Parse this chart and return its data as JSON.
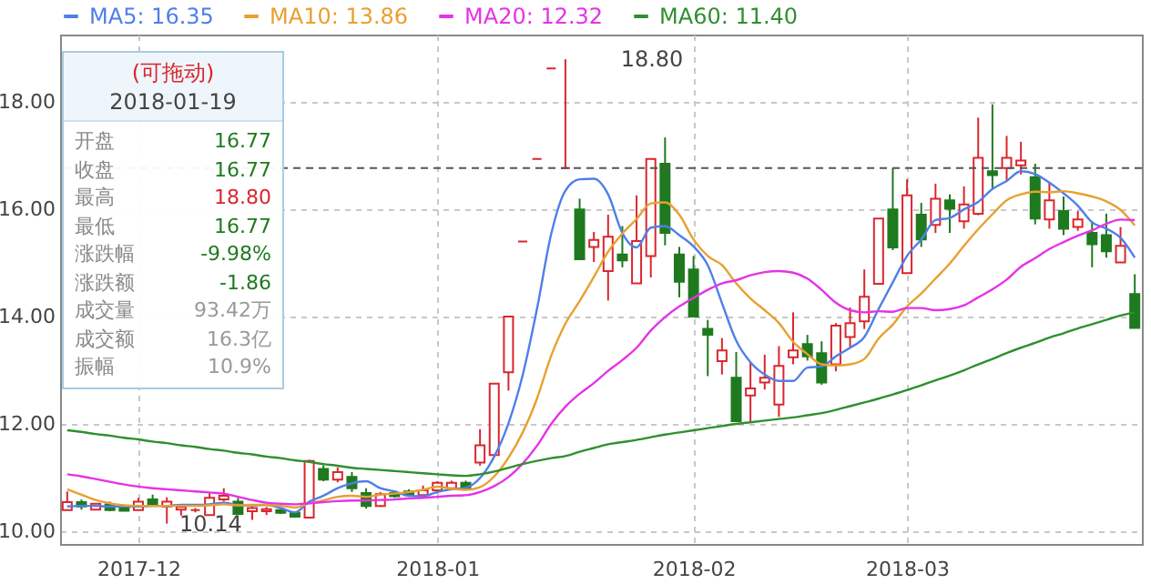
{
  "chart_data": {
    "type": "candlestick",
    "categories": [
      null,
      null,
      null,
      null,
      null,
      "2017-12",
      null,
      null,
      null,
      null,
      null,
      null,
      null,
      null,
      null,
      null,
      null,
      null,
      null,
      null,
      null,
      null,
      null,
      null,
      null,
      null,
      "2018-01",
      null,
      null,
      null,
      null,
      null,
      null,
      null,
      null,
      null,
      null,
      null,
      null,
      null,
      null,
      null,
      null,
      null,
      "2018-02",
      null,
      null,
      null,
      null,
      null,
      null,
      null,
      null,
      null,
      null,
      null,
      null,
      null,
      null,
      "2018-03",
      null,
      null,
      null,
      null,
      null,
      null,
      null,
      null,
      null,
      null,
      null,
      null,
      null,
      null,
      null,
      null
    ],
    "ohlc": [
      [
        10.39,
        10.74,
        10.39,
        10.54
      ],
      [
        10.54,
        10.59,
        10.4,
        10.46
      ],
      [
        10.4,
        10.51,
        10.4,
        10.51
      ],
      [
        10.5,
        10.55,
        10.37,
        10.39
      ],
      [
        10.42,
        10.43,
        10.37,
        10.38
      ],
      [
        10.39,
        10.62,
        10.38,
        10.55
      ],
      [
        10.59,
        10.68,
        10.48,
        10.5
      ],
      [
        10.46,
        10.63,
        10.14,
        10.55
      ],
      [
        10.4,
        10.49,
        10.29,
        10.45
      ],
      [
        10.39,
        10.43,
        10.35,
        10.39
      ],
      [
        10.3,
        10.71,
        10.3,
        10.62
      ],
      [
        10.59,
        10.8,
        10.55,
        10.66
      ],
      [
        10.55,
        10.62,
        10.3,
        10.32
      ],
      [
        10.37,
        10.46,
        10.21,
        10.43
      ],
      [
        10.37,
        10.45,
        10.3,
        10.41
      ],
      [
        10.39,
        10.41,
        10.32,
        10.34
      ],
      [
        10.34,
        10.37,
        10.25,
        10.27
      ],
      [
        10.25,
        11.33,
        10.25,
        11.31
      ],
      [
        11.16,
        11.23,
        10.93,
        10.96
      ],
      [
        10.96,
        11.19,
        10.91,
        11.1
      ],
      [
        11.01,
        11.1,
        10.73,
        10.8
      ],
      [
        10.71,
        10.8,
        10.42,
        10.47
      ],
      [
        10.47,
        10.73,
        10.45,
        10.69
      ],
      [
        10.71,
        10.75,
        10.62,
        10.65
      ],
      [
        10.74,
        10.78,
        10.64,
        10.67
      ],
      [
        10.67,
        10.85,
        10.62,
        10.76
      ],
      [
        10.76,
        10.93,
        10.7,
        10.9
      ],
      [
        10.8,
        10.94,
        10.76,
        10.9
      ],
      [
        10.9,
        10.94,
        10.78,
        10.8
      ],
      [
        11.28,
        11.9,
        11.22,
        11.6
      ],
      [
        11.42,
        12.75,
        11.42,
        12.75
      ],
      [
        12.96,
        14.0,
        12.62,
        14.0
      ],
      [
        15.4,
        15.4,
        15.4,
        15.4
      ],
      [
        16.94,
        16.94,
        16.94,
        16.94
      ],
      [
        18.63,
        18.63,
        18.63,
        18.63
      ],
      [
        16.77,
        18.8,
        16.77,
        16.77
      ],
      [
        16.0,
        16.2,
        15.07,
        15.07
      ],
      [
        15.3,
        15.58,
        15.02,
        15.43
      ],
      [
        14.85,
        15.9,
        14.3,
        15.49
      ],
      [
        15.16,
        15.69,
        14.92,
        15.05
      ],
      [
        14.62,
        16.26,
        14.62,
        15.41
      ],
      [
        15.13,
        16.94,
        14.73,
        16.94
      ],
      [
        16.85,
        17.34,
        15.33,
        15.56
      ],
      [
        15.16,
        15.3,
        14.36,
        14.65
      ],
      [
        14.88,
        15.13,
        14.0,
        14.0
      ],
      [
        13.77,
        13.94,
        12.89,
        13.66
      ],
      [
        13.17,
        13.6,
        12.92,
        13.37
      ],
      [
        12.86,
        13.34,
        12.05,
        12.05
      ],
      [
        12.53,
        13.15,
        12.02,
        12.66
      ],
      [
        12.77,
        13.29,
        12.64,
        12.86
      ],
      [
        12.36,
        13.45,
        12.13,
        13.08
      ],
      [
        13.24,
        14.08,
        13.11,
        13.37
      ],
      [
        13.49,
        13.66,
        13.18,
        13.26
      ],
      [
        13.32,
        13.54,
        12.73,
        12.77
      ],
      [
        13.11,
        13.88,
        12.98,
        13.83
      ],
      [
        13.62,
        14.17,
        13.43,
        13.88
      ],
      [
        13.91,
        14.88,
        13.77,
        14.37
      ],
      [
        14.61,
        15.83,
        14.61,
        15.83
      ],
      [
        16.0,
        16.77,
        15.24,
        15.29
      ],
      [
        14.81,
        16.56,
        14.81,
        16.26
      ],
      [
        15.9,
        16.12,
        15.3,
        15.44
      ],
      [
        15.71,
        16.48,
        15.56,
        16.2
      ],
      [
        16.17,
        16.28,
        15.56,
        16.01
      ],
      [
        15.78,
        16.43,
        15.64,
        16.09
      ],
      [
        15.92,
        17.71,
        15.89,
        16.96
      ],
      [
        16.71,
        17.96,
        16.37,
        16.64
      ],
      [
        16.77,
        17.37,
        16.54,
        16.96
      ],
      [
        16.82,
        17.26,
        16.65,
        16.91
      ],
      [
        16.6,
        16.85,
        15.72,
        15.83
      ],
      [
        15.81,
        16.51,
        15.64,
        16.17
      ],
      [
        15.97,
        16.24,
        15.52,
        15.64
      ],
      [
        15.67,
        15.97,
        15.6,
        15.81
      ],
      [
        15.56,
        15.78,
        14.92,
        15.35
      ],
      [
        15.52,
        15.92,
        15.1,
        15.22
      ],
      [
        15.01,
        15.67,
        15.01,
        15.32
      ],
      [
        14.42,
        14.79,
        13.79,
        13.79
      ]
    ],
    "series": [
      {
        "name": "MA5: 16.35",
        "color": "#4f7fe8",
        "type": "line",
        "values": [
          10.46,
          10.47,
          10.47,
          10.46,
          10.46,
          10.46,
          10.47,
          10.47,
          10.49,
          10.49,
          10.5,
          10.53,
          10.49,
          10.48,
          10.49,
          10.43,
          10.35,
          10.55,
          10.66,
          10.8,
          10.89,
          10.93,
          10.8,
          10.74,
          10.66,
          10.65,
          10.73,
          10.78,
          10.81,
          10.99,
          11.39,
          12.01,
          12.91,
          14.14,
          15.54,
          16.35,
          16.56,
          16.57,
          16.28,
          15.56,
          15.29,
          15.66,
          15.69,
          15.52,
          15.31,
          14.96,
          14.25,
          13.55,
          13.15,
          12.92,
          12.8,
          12.8,
          13.05,
          13.07,
          13.26,
          13.42,
          13.62,
          14.14,
          14.64,
          15.13,
          15.44,
          15.8,
          15.84,
          16.0,
          16.14,
          16.38,
          16.53,
          16.71,
          16.66,
          16.5,
          16.3,
          16.07,
          15.76,
          15.64,
          15.47,
          15.1
        ]
      },
      {
        "name": "MA10: 13.86",
        "color": "#e8a030",
        "type": "line",
        "values": [
          10.78,
          10.68,
          10.58,
          10.52,
          10.48,
          10.47,
          10.47,
          10.47,
          10.47,
          10.47,
          10.48,
          10.5,
          10.48,
          10.49,
          10.49,
          10.47,
          10.44,
          10.52,
          10.57,
          10.64,
          10.66,
          10.64,
          10.68,
          10.7,
          10.73,
          10.77,
          10.83,
          10.79,
          10.77,
          10.82,
          11.02,
          11.37,
          11.84,
          12.47,
          13.27,
          13.87,
          14.29,
          14.74,
          15.21,
          15.55,
          15.82,
          16.11,
          16.13,
          15.9,
          15.44,
          15.13,
          14.96,
          14.62,
          14.34,
          14.12,
          13.88,
          13.53,
          13.3,
          13.11,
          13.09,
          13.11,
          13.21,
          13.59,
          13.85,
          14.19,
          14.43,
          14.71,
          14.99,
          15.32,
          15.63,
          15.91,
          16.17,
          16.28,
          16.33,
          16.32,
          16.34,
          16.3,
          16.24,
          16.15,
          15.99,
          15.7
        ]
      },
      {
        "name": "MA20: 12.32",
        "color": "#e632e6",
        "type": "line",
        "values": [
          11.06,
          11.02,
          10.97,
          10.92,
          10.87,
          10.83,
          10.8,
          10.78,
          10.76,
          10.74,
          10.72,
          10.7,
          10.64,
          10.58,
          10.53,
          10.51,
          10.5,
          10.52,
          10.54,
          10.56,
          10.57,
          10.57,
          10.58,
          10.59,
          10.61,
          10.62,
          10.64,
          10.66,
          10.67,
          10.73,
          10.84,
          11.01,
          11.26,
          11.59,
          12.0,
          12.32,
          12.56,
          12.76,
          12.99,
          13.19,
          13.42,
          13.74,
          13.99,
          14.19,
          14.35,
          14.5,
          14.62,
          14.68,
          14.77,
          14.83,
          14.85,
          14.82,
          14.71,
          14.5,
          14.26,
          14.12,
          14.08,
          14.1,
          14.09,
          14.16,
          14.16,
          14.12,
          14.14,
          14.21,
          14.36,
          14.51,
          14.69,
          14.93,
          15.09,
          15.26,
          15.39,
          15.51,
          15.61,
          15.73,
          15.81,
          15.8
        ]
      },
      {
        "name": "MA60: 11.40",
        "color": "#2f8f2f",
        "type": "line",
        "values": [
          11.88,
          11.85,
          11.81,
          11.78,
          11.74,
          11.71,
          11.67,
          11.64,
          11.6,
          11.57,
          11.53,
          11.5,
          11.46,
          11.43,
          11.39,
          11.36,
          11.32,
          11.29,
          11.25,
          11.22,
          11.18,
          11.16,
          11.14,
          11.12,
          11.1,
          11.08,
          11.06,
          11.04,
          11.03,
          11.06,
          11.11,
          11.18,
          11.25,
          11.31,
          11.36,
          11.4,
          11.48,
          11.55,
          11.62,
          11.66,
          11.7,
          11.75,
          11.8,
          11.84,
          11.88,
          11.92,
          11.96,
          12.0,
          12.03,
          12.06,
          12.09,
          12.12,
          12.16,
          12.2,
          12.26,
          12.33,
          12.4,
          12.47,
          12.55,
          12.63,
          12.72,
          12.81,
          12.9,
          13.0,
          13.11,
          13.21,
          13.32,
          13.42,
          13.51,
          13.61,
          13.69,
          13.78,
          13.86,
          13.94,
          14.02,
          14.08
        ]
      }
    ],
    "ylim": [
      9.76,
      19.26
    ],
    "yticks": [
      {
        "value": 10,
        "label": "10.00"
      },
      {
        "value": 12,
        "label": "12.00"
      },
      {
        "value": 14,
        "label": "14.00"
      },
      {
        "value": 16,
        "label": "16.00"
      },
      {
        "value": 18,
        "label": "18.00"
      }
    ],
    "grid": true,
    "legend": "top",
    "ref_lines": [
      {
        "axis": "y",
        "value": 16.77,
        "color": "#555555",
        "line_style": "dashed"
      }
    ],
    "annotations": [
      "(可拖动)",
      "2018-01-19",
      "开盘",
      "16.77",
      "收盘",
      "16.77",
      "最高",
      "18.80",
      "最低",
      "16.77",
      "涨跌幅",
      "-9.98%",
      "涨跌额",
      "-1.86",
      "成交量",
      "93.42万",
      "成交额",
      "16.3亿",
      "振幅",
      "10.9%",
      "18.80",
      "10.14"
    ]
  }
}
